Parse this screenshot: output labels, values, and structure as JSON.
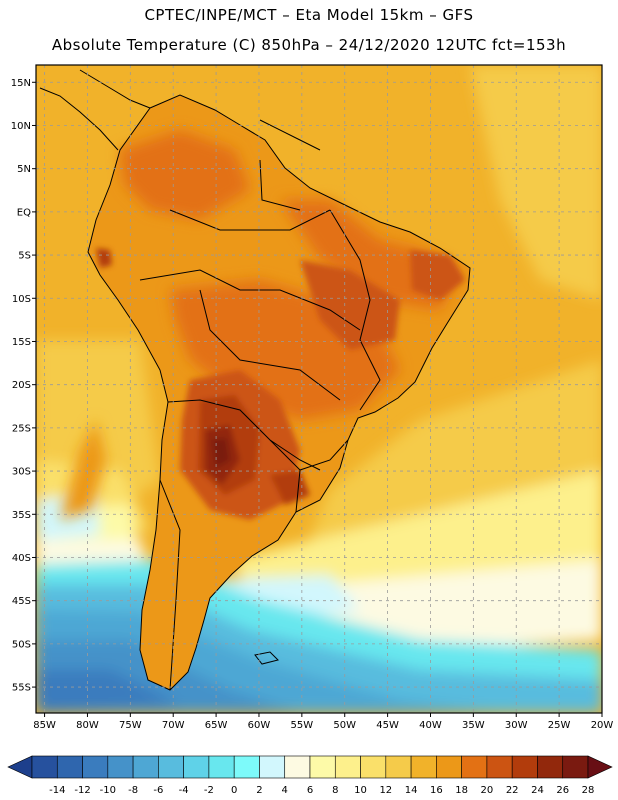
{
  "header": {
    "title_line1": "CPTEC/INPE/MCT –  Eta Model 15km – GFS",
    "title_line2": "Absolute Temperature (C) 850hPa – 24/12/2020 12UTC fct=153h"
  },
  "map": {
    "lat_labels": [
      "15N",
      "10N",
      "5N",
      "EQ",
      "5S",
      "10S",
      "15S",
      "20S",
      "25S",
      "30S",
      "35S",
      "40S",
      "45S",
      "50S",
      "55S"
    ],
    "lat_values": [
      15,
      10,
      5,
      0,
      -5,
      -10,
      -15,
      -20,
      -25,
      -30,
      -35,
      -40,
      -45,
      -50,
      -55
    ],
    "lon_labels": [
      "85W",
      "80W",
      "75W",
      "70W",
      "65W",
      "60W",
      "55W",
      "50W",
      "45W",
      "40W",
      "35W",
      "30W",
      "25W",
      "20W"
    ],
    "lon_values": [
      -85,
      -80,
      -75,
      -70,
      -65,
      -60,
      -55,
      -50,
      -45,
      -40,
      -35,
      -30,
      -25,
      -20
    ],
    "extent": {
      "lon_min": -86,
      "lon_max": -20,
      "lat_min": -58,
      "lat_max": 17
    }
  },
  "colorbar": {
    "labels": [
      "-14",
      "-12",
      "-10",
      "-8",
      "-6",
      "-4",
      "-2",
      "0",
      "2",
      "4",
      "6",
      "8",
      "10",
      "12",
      "14",
      "16",
      "18",
      "20",
      "22",
      "24",
      "26",
      "28"
    ],
    "colors": [
      "#1d3f8c",
      "#26519e",
      "#2f66ae",
      "#3a7cbe",
      "#4592c9",
      "#4ea7d4",
      "#58bcde",
      "#5fd2e8",
      "#68e7ee",
      "#7dfafa",
      "#d2f7fd",
      "#fdfae2",
      "#fdfaa8",
      "#fdf08c",
      "#fae06a",
      "#f5cb4a",
      "#f1b22a",
      "#ec9818",
      "#e37114",
      "#cc5412",
      "#b23c0c",
      "#92280c",
      "#7a1a10",
      "#680e14"
    ]
  }
}
